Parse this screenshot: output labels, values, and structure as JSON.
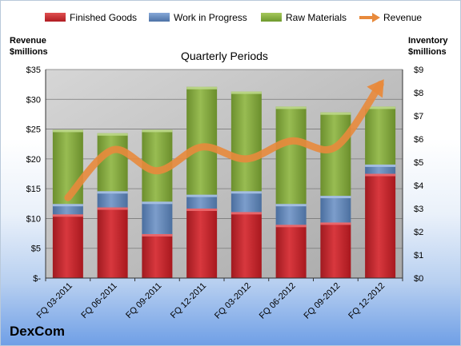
{
  "chart_data": {
    "type": "bar",
    "subtype": "stacked bar with line overlay, dual axis",
    "title": "Quarterly Periods",
    "categories": [
      "FQ 03-2011",
      "FQ 06-2011",
      "FQ 09-2011",
      "FQ 12-2011",
      "FQ 03-2012",
      "FQ 06-2012",
      "FQ 09-2012",
      "FQ 12-2012"
    ],
    "left_axis": {
      "label_line1": "Revenue",
      "label_line2": "$millions",
      "ylim": [
        0,
        35
      ],
      "ticks": [
        "$-",
        "$5",
        "$10",
        "$15",
        "$20",
        "$25",
        "$30",
        "$35"
      ]
    },
    "right_axis": {
      "label_line1": "Inventory",
      "label_line2": "$millions",
      "ylim": [
        0,
        9
      ],
      "ticks": [
        "$0",
        "$1",
        "$2",
        "$3",
        "$4",
        "$5",
        "$6",
        "$7",
        "$8",
        "$9"
      ]
    },
    "series": [
      {
        "name": "Finished Goods",
        "type": "bar",
        "axis": "right",
        "color": "#c0262c",
        "values": [
          2.75,
          3.05,
          1.9,
          3.0,
          2.85,
          2.3,
          2.4,
          4.5
        ]
      },
      {
        "name": "Work in Progress",
        "type": "bar",
        "axis": "right",
        "color": "#5f84b5",
        "values": [
          0.45,
          0.7,
          1.4,
          0.6,
          0.9,
          0.9,
          1.15,
          0.4
        ]
      },
      {
        "name": "Raw Materials",
        "type": "bar",
        "axis": "right",
        "color": "#84a83e",
        "values": [
          3.2,
          2.5,
          3.1,
          4.65,
          4.3,
          4.2,
          3.6,
          2.5
        ]
      },
      {
        "name": "Revenue",
        "type": "line",
        "axis": "left",
        "color": "#e88a3c",
        "values": [
          13.5,
          21.5,
          18.0,
          22.0,
          20.0,
          23.0,
          22.0,
          32.5
        ]
      }
    ],
    "grid": true,
    "legend_position": "top",
    "plot_background": "#c0c0c0"
  },
  "brand": "DexCom"
}
